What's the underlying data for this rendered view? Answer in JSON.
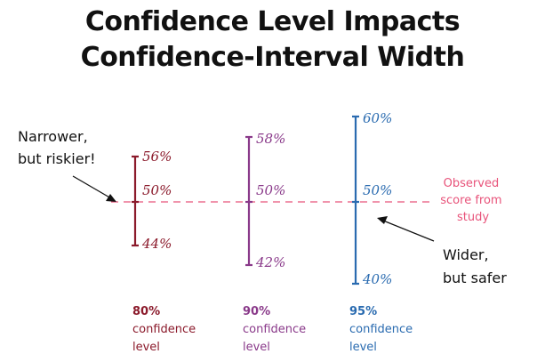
{
  "title": {
    "line1": "Confidence Level Impacts",
    "line2": "Confidence-Interval Width"
  },
  "colors": {
    "ci80": "#8b1a2b",
    "ci90": "#8a3a8a",
    "ci95": "#2a6bb0",
    "observed": "#e8537a",
    "text": "#111111"
  },
  "observed_line": {
    "value": "50%",
    "label_lines": [
      "Observed",
      "score from",
      "study"
    ]
  },
  "intervals": [
    {
      "id": "ci80",
      "upper": "56%",
      "mid": "50%",
      "lower": "44%",
      "upper_value": 56,
      "lower_value": 44,
      "level_lines": [
        "80%",
        "confidence",
        "level"
      ]
    },
    {
      "id": "ci90",
      "upper": "58%",
      "mid": "50%",
      "lower": "42%",
      "upper_value": 58,
      "lower_value": 42,
      "level_lines": [
        "90%",
        "confidence",
        "level"
      ]
    },
    {
      "id": "ci95",
      "upper": "60%",
      "mid": "50%",
      "lower": "40%",
      "upper_value": 60,
      "lower_value": 40,
      "level_lines": [
        "95%",
        "confidence",
        "level"
      ]
    }
  ],
  "annotations": {
    "narrow": [
      "Narrower,",
      "but riskier!"
    ],
    "wide": [
      "Wider,",
      "but safer"
    ]
  }
}
